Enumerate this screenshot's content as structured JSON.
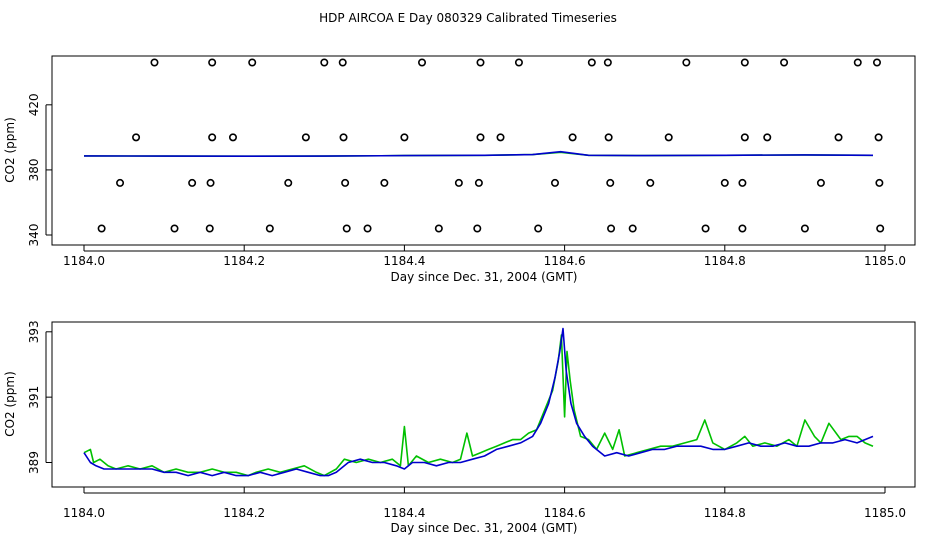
{
  "figure": {
    "title": "HDP AIRCOA E  Day 080329  Calibrated Timeseries"
  },
  "colors": {
    "series_green": "#00c000",
    "series_blue": "#0000cc",
    "points": "#000000",
    "background": "#ffffff"
  },
  "chart_data": [
    {
      "type": "scatter",
      "xlabel": "Day since Dec. 31, 2004 (GMT)",
      "ylabel": "CO2 (ppm)",
      "xlim": [
        1184.0,
        1185.0
      ],
      "ylim": [
        340,
        450
      ],
      "xticks": [
        "1184.0",
        "1184.2",
        "1184.4",
        "1184.6",
        "1184.8",
        "1185.0"
      ],
      "yticks": [
        "340",
        "380",
        "420"
      ],
      "grid": false,
      "points": [
        {
          "x": 1184.088,
          "y": 446
        },
        {
          "x": 1184.16,
          "y": 446
        },
        {
          "x": 1184.21,
          "y": 446
        },
        {
          "x": 1184.3,
          "y": 446
        },
        {
          "x": 1184.323,
          "y": 446
        },
        {
          "x": 1184.422,
          "y": 446
        },
        {
          "x": 1184.495,
          "y": 446
        },
        {
          "x": 1184.543,
          "y": 446
        },
        {
          "x": 1184.634,
          "y": 446
        },
        {
          "x": 1184.654,
          "y": 446
        },
        {
          "x": 1184.752,
          "y": 446
        },
        {
          "x": 1184.825,
          "y": 446
        },
        {
          "x": 1184.874,
          "y": 446
        },
        {
          "x": 1184.966,
          "y": 446
        },
        {
          "x": 1184.99,
          "y": 446
        },
        {
          "x": 1184.065,
          "y": 400
        },
        {
          "x": 1184.16,
          "y": 400
        },
        {
          "x": 1184.186,
          "y": 400
        },
        {
          "x": 1184.277,
          "y": 400
        },
        {
          "x": 1184.324,
          "y": 400
        },
        {
          "x": 1184.4,
          "y": 400
        },
        {
          "x": 1184.495,
          "y": 400
        },
        {
          "x": 1184.52,
          "y": 400
        },
        {
          "x": 1184.61,
          "y": 400
        },
        {
          "x": 1184.655,
          "y": 400
        },
        {
          "x": 1184.73,
          "y": 400
        },
        {
          "x": 1184.825,
          "y": 400
        },
        {
          "x": 1184.853,
          "y": 400
        },
        {
          "x": 1184.942,
          "y": 400
        },
        {
          "x": 1184.992,
          "y": 400
        },
        {
          "x": 1184.045,
          "y": 372
        },
        {
          "x": 1184.135,
          "y": 372
        },
        {
          "x": 1184.158,
          "y": 372
        },
        {
          "x": 1184.255,
          "y": 372
        },
        {
          "x": 1184.326,
          "y": 372
        },
        {
          "x": 1184.375,
          "y": 372
        },
        {
          "x": 1184.468,
          "y": 372
        },
        {
          "x": 1184.493,
          "y": 372
        },
        {
          "x": 1184.588,
          "y": 372
        },
        {
          "x": 1184.657,
          "y": 372
        },
        {
          "x": 1184.707,
          "y": 372
        },
        {
          "x": 1184.8,
          "y": 372
        },
        {
          "x": 1184.822,
          "y": 372
        },
        {
          "x": 1184.92,
          "y": 372
        },
        {
          "x": 1184.993,
          "y": 372
        },
        {
          "x": 1184.022,
          "y": 344
        },
        {
          "x": 1184.113,
          "y": 344
        },
        {
          "x": 1184.157,
          "y": 344
        },
        {
          "x": 1184.232,
          "y": 344
        },
        {
          "x": 1184.328,
          "y": 344
        },
        {
          "x": 1184.354,
          "y": 344
        },
        {
          "x": 1184.443,
          "y": 344
        },
        {
          "x": 1184.491,
          "y": 344
        },
        {
          "x": 1184.567,
          "y": 344
        },
        {
          "x": 1184.658,
          "y": 344
        },
        {
          "x": 1184.685,
          "y": 344
        },
        {
          "x": 1184.776,
          "y": 344
        },
        {
          "x": 1184.822,
          "y": 344
        },
        {
          "x": 1184.9,
          "y": 344
        },
        {
          "x": 1184.994,
          "y": 344
        }
      ],
      "series": [
        {
          "color": "green",
          "x": [
            1184.0,
            1184.1,
            1184.2,
            1184.3,
            1184.4,
            1184.5,
            1184.56,
            1184.595,
            1184.63,
            1184.7,
            1184.8,
            1184.9,
            1184.985
          ],
          "y": [
            388.6,
            388.5,
            388.4,
            388.5,
            388.8,
            389.0,
            389.4,
            390.8,
            389.0,
            388.8,
            389.0,
            389.2,
            389.0
          ]
        },
        {
          "color": "blue",
          "x": [
            1184.0,
            1184.1,
            1184.2,
            1184.3,
            1184.4,
            1184.5,
            1184.56,
            1184.595,
            1184.63,
            1184.7,
            1184.8,
            1184.9,
            1184.985
          ],
          "y": [
            388.6,
            388.5,
            388.4,
            388.5,
            388.8,
            389.0,
            389.4,
            391.2,
            389.0,
            388.8,
            389.0,
            389.2,
            389.0
          ]
        }
      ]
    },
    {
      "type": "line",
      "xlabel": "Day since Dec. 31, 2004 (GMT)",
      "ylabel": "CO2 (ppm)",
      "xlim": [
        1184.0,
        1185.0
      ],
      "ylim": [
        388.25,
        393.3
      ],
      "xticks": [
        "1184.0",
        "1184.2",
        "1184.4",
        "1184.6",
        "1184.8",
        "1185.0"
      ],
      "yticks": [
        "389",
        "391",
        "393"
      ],
      "grid": false,
      "series": [
        {
          "color": "green",
          "x": [
            1184.0,
            1184.008,
            1184.012,
            1184.02,
            1184.03,
            1184.04,
            1184.055,
            1184.07,
            1184.085,
            1184.1,
            1184.115,
            1184.13,
            1184.145,
            1184.16,
            1184.175,
            1184.19,
            1184.205,
            1184.215,
            1184.23,
            1184.245,
            1184.26,
            1184.275,
            1184.29,
            1184.3,
            1184.315,
            1184.325,
            1184.34,
            1184.355,
            1184.37,
            1184.385,
            1184.395,
            1184.4,
            1184.405,
            1184.415,
            1184.43,
            1184.445,
            1184.46,
            1184.47,
            1184.478,
            1184.485,
            1184.495,
            1184.505,
            1184.515,
            1184.525,
            1184.535,
            1184.545,
            1184.555,
            1184.565,
            1184.575,
            1184.585,
            1184.592,
            1184.596,
            1184.6,
            1184.603,
            1184.607,
            1184.612,
            1184.62,
            1184.63,
            1184.64,
            1184.65,
            1184.66,
            1184.668,
            1184.675,
            1184.69,
            1184.705,
            1184.72,
            1184.735,
            1184.75,
            1184.765,
            1184.775,
            1184.785,
            1184.8,
            1184.815,
            1184.825,
            1184.835,
            1184.85,
            1184.865,
            1184.88,
            1184.89,
            1184.9,
            1184.912,
            1184.92,
            1184.93,
            1184.945,
            1184.955,
            1184.965,
            1184.975,
            1184.985
          ],
          "y": [
            389.3,
            389.4,
            389.0,
            389.1,
            388.9,
            388.8,
            388.9,
            388.8,
            388.9,
            388.7,
            388.8,
            388.7,
            388.7,
            388.8,
            388.7,
            388.7,
            388.6,
            388.7,
            388.8,
            388.7,
            388.8,
            388.9,
            388.7,
            388.6,
            388.8,
            389.1,
            389.0,
            389.1,
            389.0,
            389.1,
            388.9,
            390.1,
            388.9,
            389.2,
            389.0,
            389.1,
            389.0,
            389.1,
            389.9,
            389.2,
            389.3,
            389.4,
            389.5,
            389.6,
            389.7,
            389.7,
            389.9,
            390.0,
            390.6,
            391.2,
            392.1,
            392.9,
            390.4,
            392.4,
            391.5,
            390.6,
            389.8,
            389.7,
            389.4,
            389.9,
            389.4,
            390.0,
            389.2,
            389.3,
            389.4,
            389.5,
            389.5,
            389.6,
            389.7,
            390.3,
            389.6,
            389.4,
            389.6,
            389.8,
            389.5,
            389.6,
            389.5,
            389.7,
            389.5,
            390.3,
            389.8,
            389.6,
            390.2,
            389.7,
            389.8,
            389.8,
            389.6,
            389.5
          ]
        },
        {
          "color": "blue",
          "x": [
            1184.0,
            1184.008,
            1184.015,
            1184.025,
            1184.04,
            1184.055,
            1184.07,
            1184.085,
            1184.1,
            1184.115,
            1184.13,
            1184.145,
            1184.16,
            1184.175,
            1184.19,
            1184.205,
            1184.22,
            1184.235,
            1184.25,
            1184.265,
            1184.28,
            1184.295,
            1184.305,
            1184.315,
            1184.33,
            1184.345,
            1184.36,
            1184.375,
            1184.39,
            1184.4,
            1184.41,
            1184.425,
            1184.44,
            1184.455,
            1184.47,
            1184.485,
            1184.5,
            1184.515,
            1184.53,
            1184.545,
            1184.56,
            1184.57,
            1184.58,
            1184.588,
            1184.594,
            1184.598,
            1184.602,
            1184.608,
            1184.615,
            1184.625,
            1184.635,
            1184.65,
            1184.665,
            1184.68,
            1184.695,
            1184.71,
            1184.725,
            1184.74,
            1184.755,
            1184.77,
            1184.785,
            1184.8,
            1184.815,
            1184.83,
            1184.845,
            1184.86,
            1184.875,
            1184.89,
            1184.905,
            1184.92,
            1184.935,
            1184.95,
            1184.965,
            1184.975,
            1184.985
          ],
          "y": [
            389.3,
            389.0,
            388.9,
            388.8,
            388.8,
            388.8,
            388.8,
            388.8,
            388.7,
            388.7,
            388.6,
            388.7,
            388.6,
            388.7,
            388.6,
            388.6,
            388.7,
            388.6,
            388.7,
            388.8,
            388.7,
            388.6,
            388.6,
            388.7,
            389.0,
            389.1,
            389.0,
            389.0,
            388.9,
            388.8,
            389.0,
            389.0,
            388.9,
            389.0,
            389.0,
            389.1,
            389.2,
            389.4,
            389.5,
            389.6,
            389.8,
            390.2,
            390.8,
            391.6,
            392.4,
            393.1,
            391.8,
            390.8,
            390.2,
            389.8,
            389.5,
            389.2,
            389.3,
            389.2,
            389.3,
            389.4,
            389.4,
            389.5,
            389.5,
            389.5,
            389.4,
            389.4,
            389.5,
            389.6,
            389.5,
            389.5,
            389.6,
            389.5,
            389.5,
            389.6,
            389.6,
            389.7,
            389.6,
            389.7,
            389.8
          ]
        }
      ]
    }
  ]
}
